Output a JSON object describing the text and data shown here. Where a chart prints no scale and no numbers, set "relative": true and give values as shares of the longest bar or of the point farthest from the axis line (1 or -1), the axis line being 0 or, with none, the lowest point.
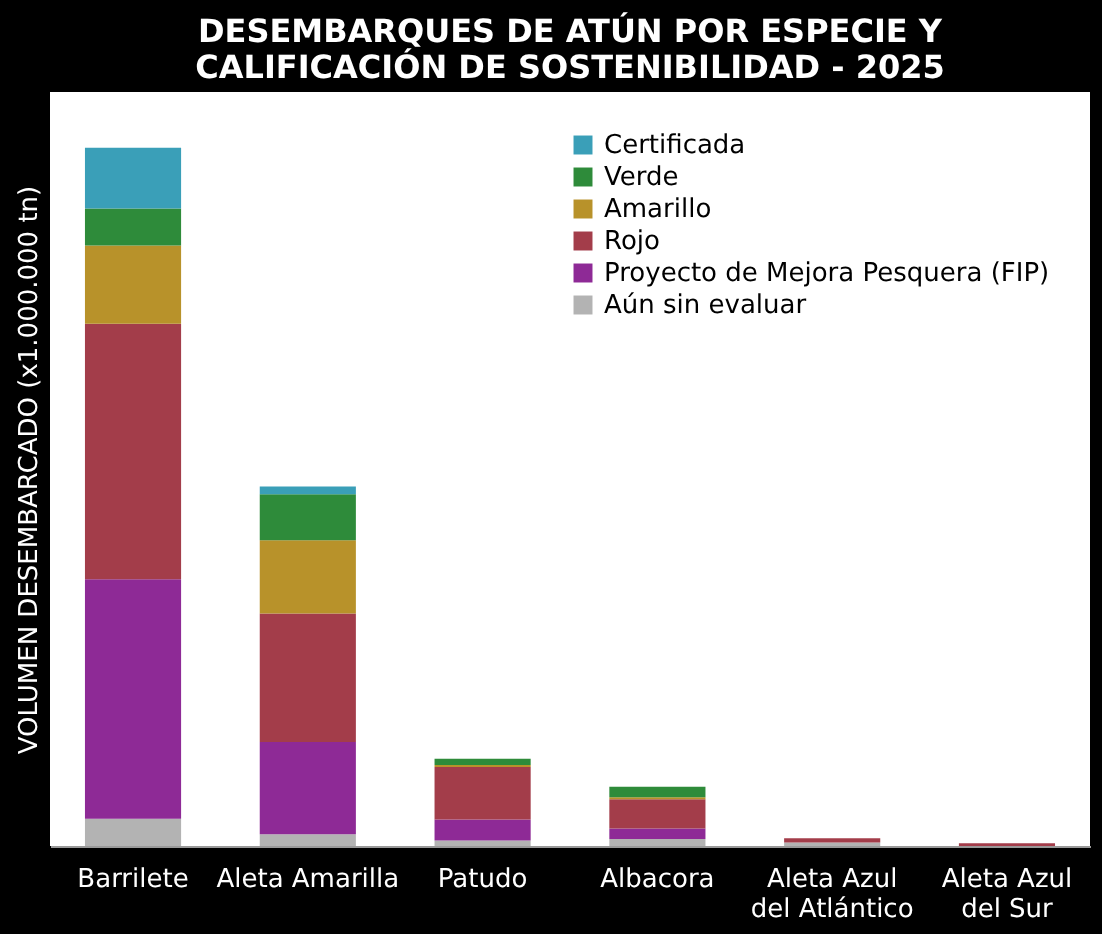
{
  "chart_data": {
    "type": "bar",
    "title": "DESEMBARQUES DE ATÚN POR ESPECIE Y CALIFICACIÓN DE SOSTENIBILIDAD - 2025",
    "ylabel": "VOLUMEN DESEMBARCADO  (x1.000.000 tn)",
    "relative": true,
    "stacked": true,
    "legend": "top right",
    "grid": false,
    "categories": [
      "Barrilete",
      "Aleta Amarilla",
      "Patudo",
      "Albacora",
      "Aleta Azul del Atlántico",
      "Aleta Azul del Sur"
    ],
    "series": [
      {
        "name": "Aún sin evaluar",
        "color": "#b3b3b3",
        "values": [
          0.039,
          0.017,
          0.008,
          0.01,
          0.005,
          0
        ]
      },
      {
        "name": "Proyecto de Mejora Pesquera (FIP)",
        "color": "#8e2a96",
        "values": [
          0.343,
          0.132,
          0.03,
          0.015,
          0,
          0
        ]
      },
      {
        "name": "Rojo",
        "color": "#a33d4a",
        "values": [
          0.366,
          0.184,
          0.075,
          0.042,
          0.006,
          0.004
        ]
      },
      {
        "name": "Amarillo",
        "color": "#b8922a",
        "values": [
          0.112,
          0.105,
          0.003,
          0.003,
          0,
          0
        ]
      },
      {
        "name": "Verde",
        "color": "#2e8b3a",
        "values": [
          0.053,
          0.066,
          0.009,
          0.015,
          0,
          0
        ]
      },
      {
        "name": "Certificada",
        "color": "#3a9fb8",
        "values": [
          0.087,
          0.011,
          0,
          0,
          0,
          0
        ]
      }
    ]
  }
}
